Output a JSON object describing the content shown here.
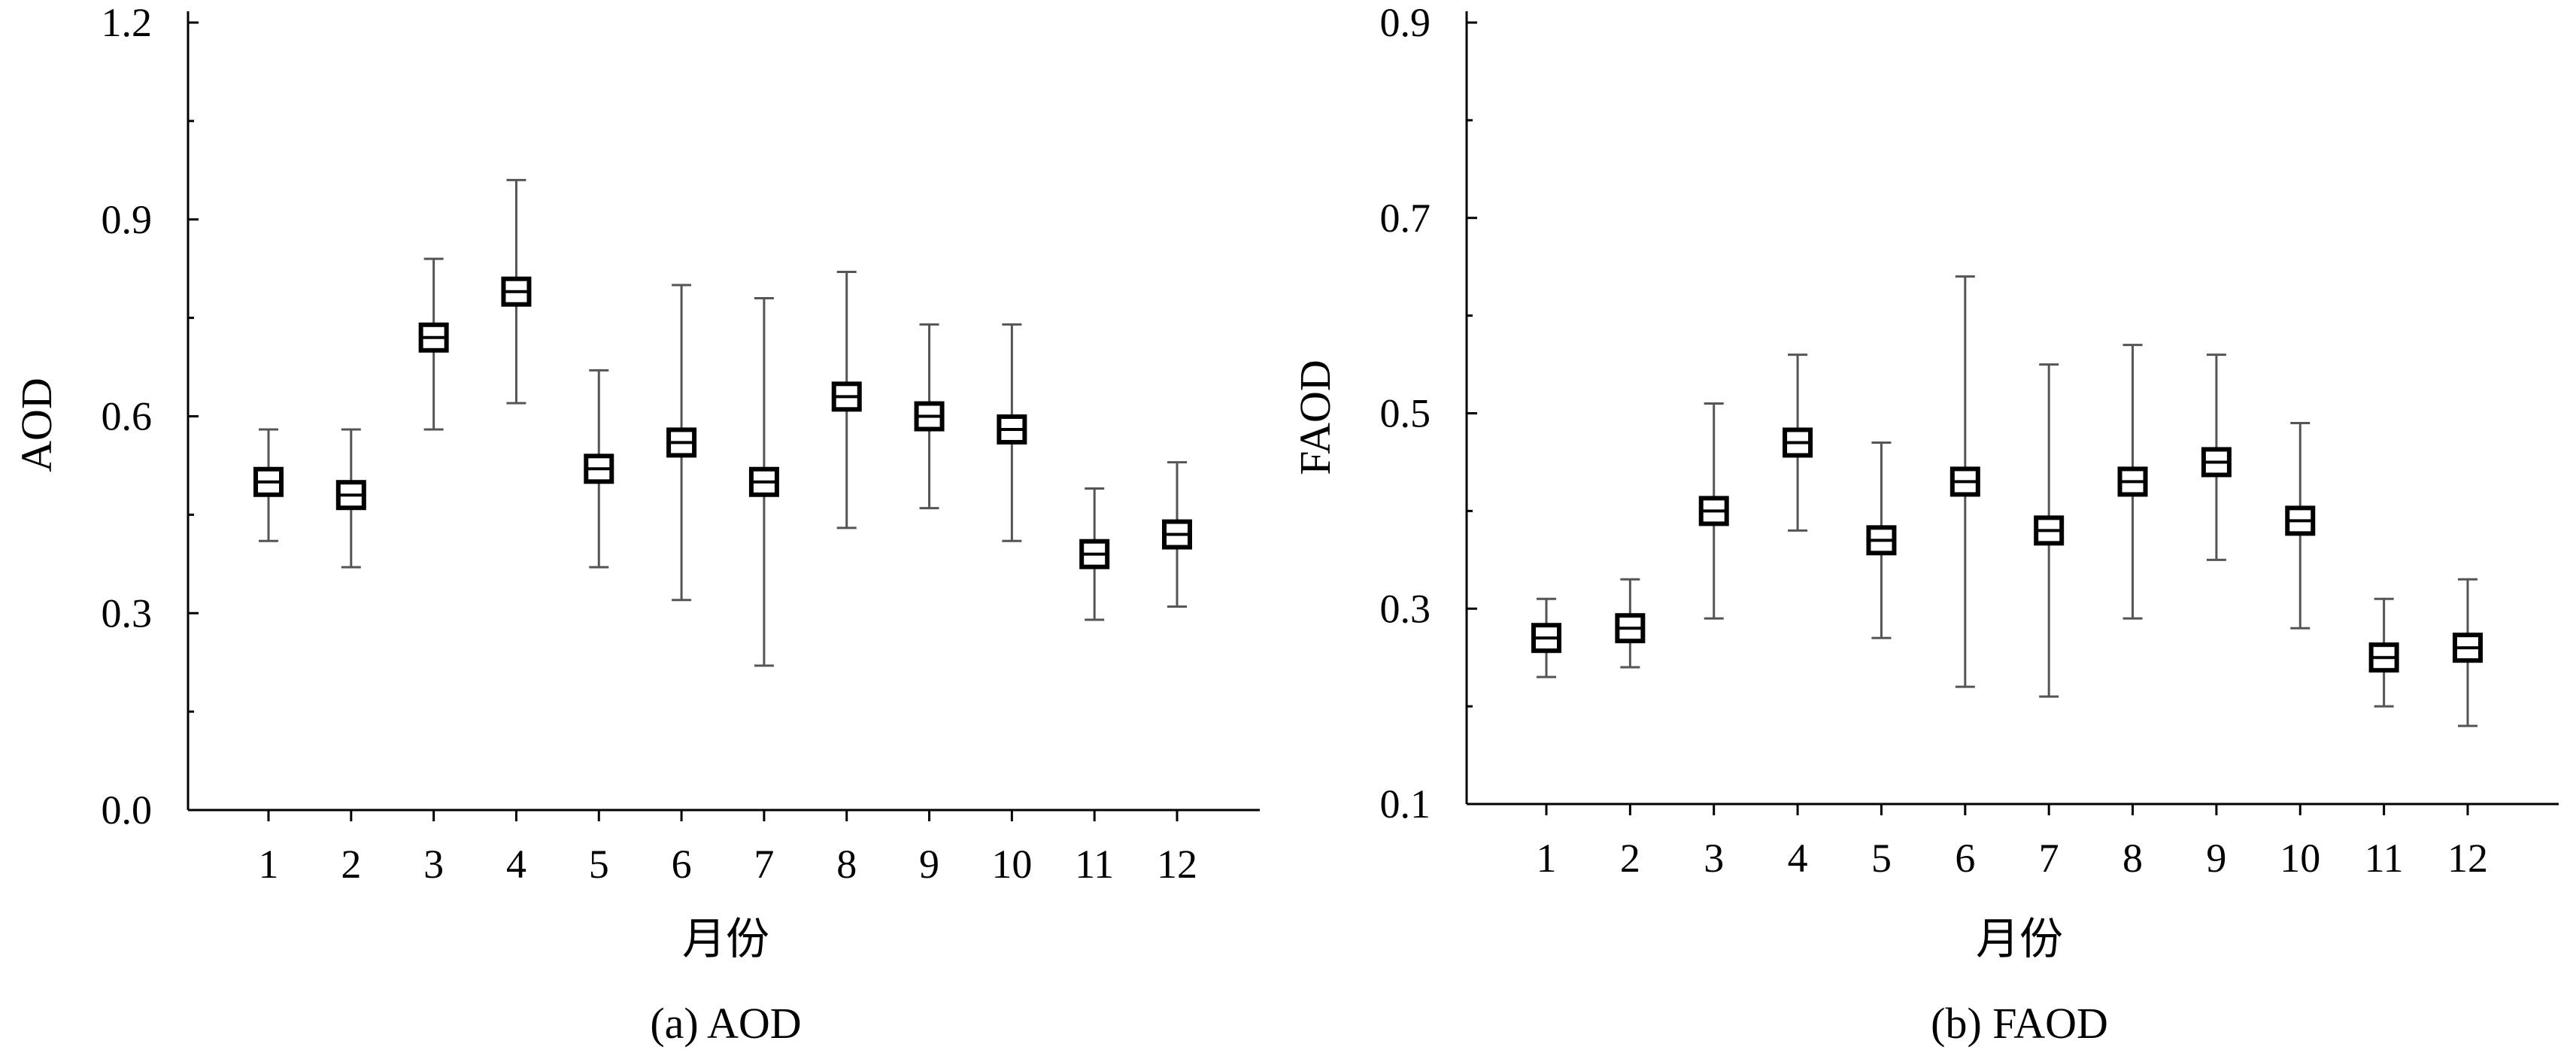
{
  "chart_data": [
    {
      "type": "box",
      "caption": "(a) AOD",
      "xlabel": "月份",
      "ylabel": "AOD",
      "categories": [
        "1",
        "2",
        "3",
        "4",
        "5",
        "6",
        "7",
        "8",
        "9",
        "10",
        "11",
        "12"
      ],
      "ylim": [
        0.0,
        1.2
      ],
      "yticks": [
        0.0,
        0.3,
        0.6,
        0.9,
        1.2
      ],
      "ytick_labels": [
        "0.0",
        "0.3",
        "0.6",
        "0.9",
        "1.2"
      ],
      "grid": false,
      "series": [
        {
          "mean": [
            0.5,
            0.48,
            0.72,
            0.79,
            0.52,
            0.56,
            0.5,
            0.63,
            0.6,
            0.58,
            0.39,
            0.42
          ],
          "min": [
            0.41,
            0.37,
            0.58,
            0.62,
            0.37,
            0.32,
            0.22,
            0.43,
            0.46,
            0.41,
            0.29,
            0.31
          ],
          "max": [
            0.58,
            0.58,
            0.84,
            0.96,
            0.67,
            0.8,
            0.78,
            0.82,
            0.74,
            0.74,
            0.49,
            0.53
          ]
        }
      ]
    },
    {
      "type": "box",
      "caption": "(b) FAOD",
      "xlabel": "月份",
      "ylabel": "FAOD",
      "categories": [
        "1",
        "2",
        "3",
        "4",
        "5",
        "6",
        "7",
        "8",
        "9",
        "10",
        "11",
        "12"
      ],
      "ylim": [
        0.1,
        0.9
      ],
      "yticks": [
        0.1,
        0.3,
        0.5,
        0.7,
        0.9
      ],
      "ytick_labels": [
        "0.1",
        "0.3",
        "0.5",
        "0.7",
        "0.9"
      ],
      "grid": false,
      "series": [
        {
          "mean": [
            0.27,
            0.28,
            0.4,
            0.47,
            0.37,
            0.43,
            0.38,
            0.43,
            0.45,
            0.39,
            0.25,
            0.26
          ],
          "min": [
            0.23,
            0.24,
            0.29,
            0.38,
            0.27,
            0.22,
            0.21,
            0.29,
            0.35,
            0.28,
            0.2,
            0.18
          ],
          "max": [
            0.31,
            0.33,
            0.51,
            0.56,
            0.47,
            0.64,
            0.55,
            0.57,
            0.56,
            0.49,
            0.31,
            0.33
          ]
        }
      ]
    }
  ]
}
